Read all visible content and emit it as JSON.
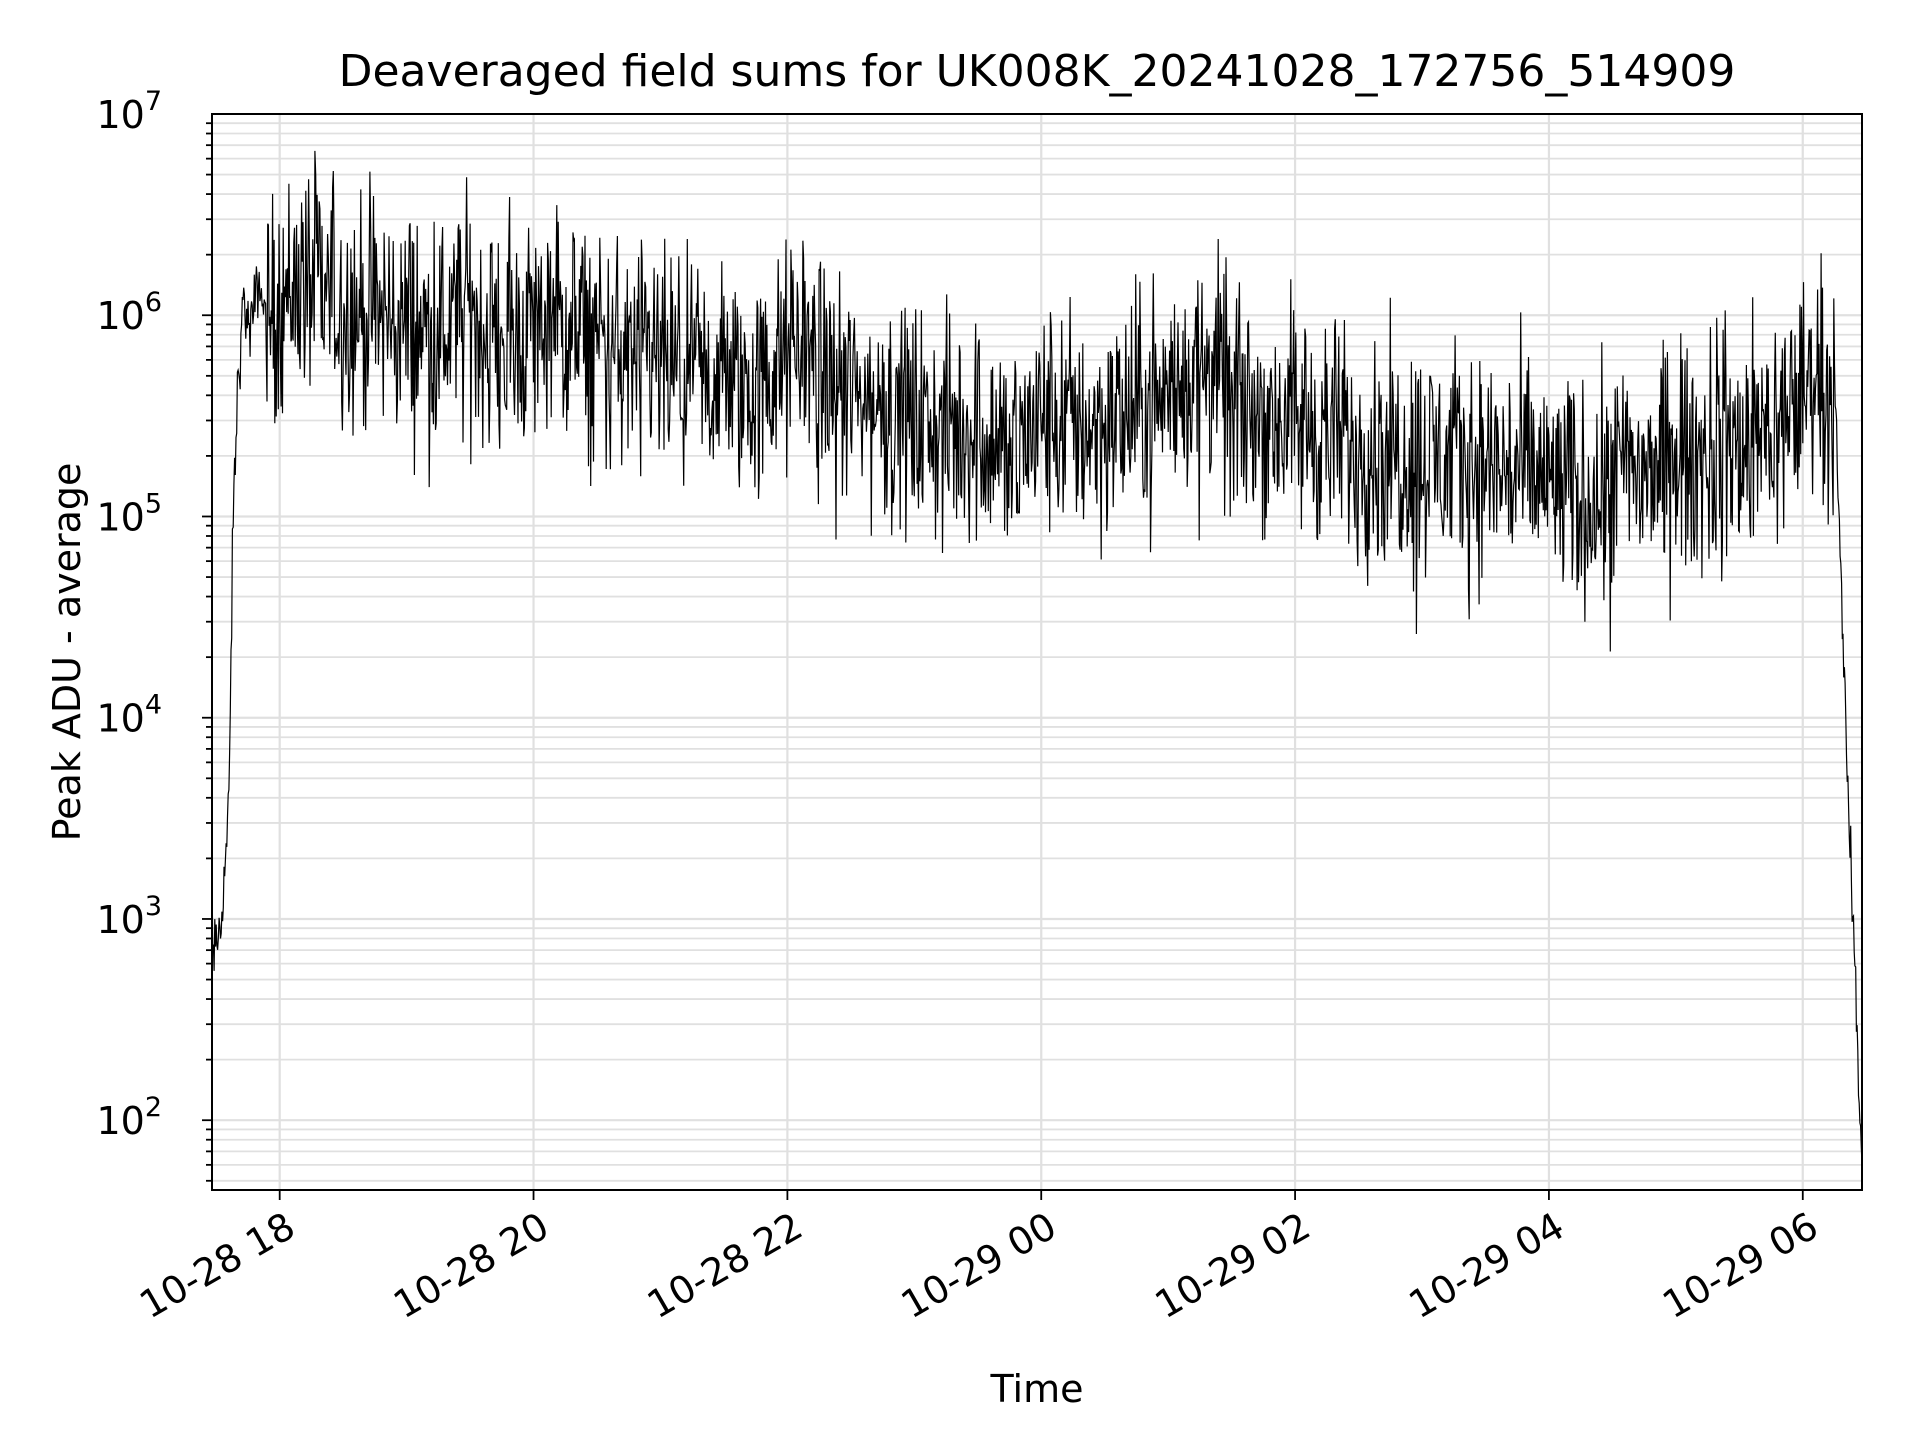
{
  "chart_data": {
    "type": "line",
    "title": "Deaveraged field sums for UK008K_20241028_172756_514909",
    "xlabel": "Time",
    "ylabel": "Peak ADU - average",
    "yscale": "log",
    "xlim": [
      "2024-10-28 17:28",
      "2024-10-29 06:28"
    ],
    "ylim": [
      45,
      10000000
    ],
    "grid": true,
    "line_color": "#000000",
    "grid_color": "#e0e0e0",
    "x_ticks": [
      {
        "x": "2024-10-28 18:00",
        "label": "10-28 18"
      },
      {
        "x": "2024-10-28 20:00",
        "label": "10-28 20"
      },
      {
        "x": "2024-10-28 22:00",
        "label": "10-28 22"
      },
      {
        "x": "2024-10-29 00:00",
        "label": "10-29 00"
      },
      {
        "x": "2024-10-29 02:00",
        "label": "10-29 02"
      },
      {
        "x": "2024-10-29 04:00",
        "label": "10-29 04"
      },
      {
        "x": "2024-10-29 06:00",
        "label": "10-29 06"
      }
    ],
    "y_ticks": [
      {
        "value": 100,
        "base": "10",
        "exp": "2"
      },
      {
        "value": 1000,
        "base": "10",
        "exp": "3"
      },
      {
        "value": 10000,
        "base": "10",
        "exp": "4"
      },
      {
        "value": 100000,
        "base": "10",
        "exp": "5"
      },
      {
        "value": 1000000,
        "base": "10",
        "exp": "6"
      },
      {
        "value": 10000000,
        "base": "10",
        "exp": "7"
      }
    ],
    "series": [
      {
        "x": [
          "2024-10-28 17:28",
          "2024-10-28 17:32",
          "2024-10-28 17:36",
          "2024-10-28 17:38",
          "2024-10-28 17:40",
          "2024-10-28 17:43",
          "2024-10-28 17:46",
          "2024-10-28 17:50",
          "2024-10-28 17:54",
          "2024-10-28 18:00",
          "2024-10-28 18:10",
          "2024-10-28 18:20",
          "2024-10-28 18:30",
          "2024-10-28 18:45",
          "2024-10-28 19:00",
          "2024-10-28 19:15",
          "2024-10-28 19:30",
          "2024-10-28 19:45",
          "2024-10-28 20:00",
          "2024-10-28 20:15",
          "2024-10-28 20:30",
          "2024-10-28 20:45",
          "2024-10-28 21:00",
          "2024-10-28 21:15",
          "2024-10-28 21:30",
          "2024-10-28 21:45",
          "2024-10-28 22:00",
          "2024-10-28 22:08",
          "2024-10-28 22:15",
          "2024-10-28 22:30",
          "2024-10-28 22:45",
          "2024-10-28 23:00",
          "2024-10-28 23:15",
          "2024-10-28 23:30",
          "2024-10-28 23:45",
          "2024-10-29 00:00",
          "2024-10-29 00:30",
          "2024-10-29 01:00",
          "2024-10-29 01:20",
          "2024-10-29 01:30",
          "2024-10-29 02:00",
          "2024-10-29 02:30",
          "2024-10-29 03:00",
          "2024-10-29 03:30",
          "2024-10-29 04:00",
          "2024-10-29 04:15",
          "2024-10-29 04:30",
          "2024-10-29 05:00",
          "2024-10-29 05:30",
          "2024-10-29 05:50",
          "2024-10-29 06:05",
          "2024-10-29 06:15",
          "2024-10-29 06:22",
          "2024-10-29 06:28"
        ],
        "y": [
          600,
          900,
          3500,
          100000,
          400000,
          1200000,
          800000,
          1500000,
          900000,
          1200000,
          1500000,
          1300000,
          1100000,
          1000000,
          900000,
          800000,
          1000000,
          700000,
          900000,
          850000,
          700000,
          600000,
          550000,
          450000,
          500000,
          400000,
          600000,
          800000,
          500000,
          400000,
          350000,
          300000,
          250000,
          280000,
          200000,
          300000,
          280000,
          400000,
          600000,
          350000,
          300000,
          220000,
          200000,
          180000,
          150000,
          120000,
          160000,
          180000,
          220000,
          300000,
          500000,
          400000,
          3000,
          60
        ]
      }
    ]
  }
}
